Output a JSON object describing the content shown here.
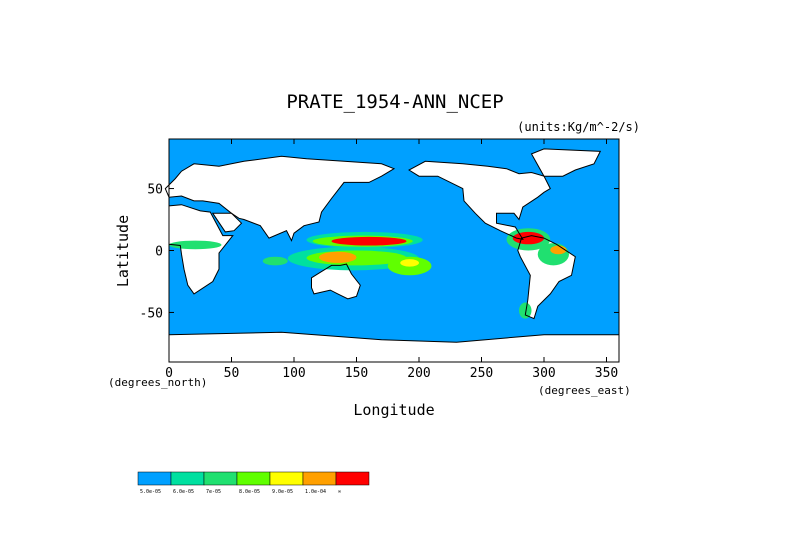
{
  "chart_data": {
    "type": "heatmap",
    "title": "PRATE_1954-ANN_NCEP",
    "units_label": "(units:Kg/m^-2/s)",
    "xlabel": "Longitude",
    "ylabel": "Latitude",
    "x_unit_note": "(degrees_east)",
    "y_unit_note": "(degrees_north)",
    "xlim": [
      0,
      360
    ],
    "ylim": [
      -90,
      90
    ],
    "x_ticks": [
      0,
      50,
      100,
      150,
      200,
      250,
      300,
      350
    ],
    "y_ticks": [
      50,
      0,
      -50
    ],
    "colorbar": {
      "colors": [
        "#00a0ff",
        "#00e0a0",
        "#20e070",
        "#60ff00",
        "#ffff00",
        "#ffa000",
        "#ff0000"
      ],
      "labels": [
        "5.0e-05",
        "6.0e-05",
        "7e-05",
        "8.0e-05",
        "9.0e-05",
        "1.0e-04",
        "∞"
      ]
    },
    "regions": [
      {
        "lon": [
          110,
          203
        ],
        "lat": [
          2,
          15
        ],
        "level": 1
      },
      {
        "lon": [
          115,
          195
        ],
        "lat": [
          3,
          12
        ],
        "level": 3
      },
      {
        "lon": [
          130,
          190
        ],
        "lat": [
          4,
          11
        ],
        "level": 6
      },
      {
        "lon": [
          95,
          200
        ],
        "lat": [
          -16,
          3
        ],
        "level": 1
      },
      {
        "lon": [
          110,
          190
        ],
        "lat": [
          -12,
          0
        ],
        "level": 3
      },
      {
        "lon": [
          120,
          150
        ],
        "lat": [
          -10,
          -1
        ],
        "level": 5
      },
      {
        "lon": [
          175,
          210
        ],
        "lat": [
          -20,
          -5
        ],
        "level": 3
      },
      {
        "lon": [
          185,
          200
        ],
        "lat": [
          -13,
          -7
        ],
        "level": 4
      },
      {
        "lon": [
          270,
          305
        ],
        "lat": [
          0,
          18
        ],
        "level": 2
      },
      {
        "lon": [
          275,
          300
        ],
        "lat": [
          5,
          15
        ],
        "level": 6
      },
      {
        "lon": [
          295,
          320
        ],
        "lat": [
          -12,
          6
        ],
        "level": 2
      },
      {
        "lon": [
          305,
          318
        ],
        "lat": [
          -3,
          4
        ],
        "level": 5
      },
      {
        "lon": [
          0,
          42
        ],
        "lat": [
          1,
          8
        ],
        "level": 2
      },
      {
        "lon": [
          75,
          95
        ],
        "lat": [
          -12,
          -5
        ],
        "level": 2
      },
      {
        "lon": [
          280,
          290
        ],
        "lat": [
          -55,
          -42
        ],
        "level": 2
      }
    ]
  }
}
